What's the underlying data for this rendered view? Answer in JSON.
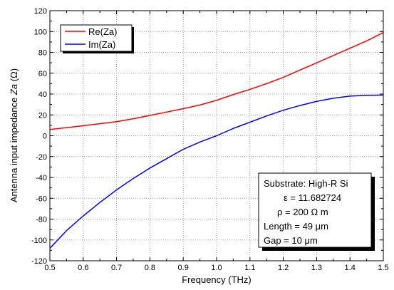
{
  "chart_data": {
    "type": "line",
    "title": "",
    "xlabel": "Frequency (THz)",
    "ylabel": "Antenna input impedance Za (Ω)",
    "ylabel_parts": {
      "prefix": "Antenna input impedance ",
      "italic": "Za",
      "suffix": " (Ω)"
    },
    "xlim": [
      0.5,
      1.5
    ],
    "ylim": [
      -120,
      120
    ],
    "xticks": [
      0.5,
      0.6,
      0.7,
      0.8,
      0.9,
      1.0,
      1.1,
      1.2,
      1.3,
      1.4,
      1.5
    ],
    "xtick_labels": [
      "0.5",
      "0.6",
      "0.7",
      "0.8",
      "0.9",
      "1.0",
      "1.1",
      "1.2",
      "1.3",
      "1.4",
      "1.5"
    ],
    "yticks": [
      -120,
      -100,
      -80,
      -60,
      -40,
      -20,
      0,
      20,
      40,
      60,
      80,
      100,
      120
    ],
    "ytick_labels": [
      "-120",
      "-100",
      "-80",
      "-60",
      "-40",
      "-20",
      "0",
      "20",
      "40",
      "60",
      "80",
      "100",
      "120"
    ],
    "grid": true,
    "legend_position": "top-left",
    "x": [
      0.5,
      0.55,
      0.6,
      0.65,
      0.7,
      0.75,
      0.8,
      0.85,
      0.9,
      0.95,
      1.0,
      1.05,
      1.1,
      1.15,
      1.2,
      1.25,
      1.3,
      1.35,
      1.4,
      1.45,
      1.5
    ],
    "series": [
      {
        "name": "Re(Za)",
        "color": "#ff0000",
        "values": [
          6,
          7.8,
          9.6,
          11.5,
          13.5,
          16.3,
          19.5,
          22.7,
          26,
          29.5,
          34,
          39.5,
          44.5,
          50,
          56,
          63,
          70,
          77,
          84,
          91,
          99
        ]
      },
      {
        "name": "Im(Za)",
        "color": "#0000ff",
        "values": [
          -108,
          -91,
          -77,
          -64,
          -52,
          -41,
          -31,
          -22,
          -13,
          -6,
          0,
          7,
          13,
          19,
          24.5,
          29,
          33,
          36,
          38,
          38.8,
          39
        ]
      }
    ],
    "annotation": {
      "lines": [
        "Substrate: High-R Si",
        "ε = 11.682724",
        "ρ = 200 Ω m",
        "Length = 49 μm",
        "Gap = 10 μm"
      ],
      "position": "bottom-right"
    }
  }
}
